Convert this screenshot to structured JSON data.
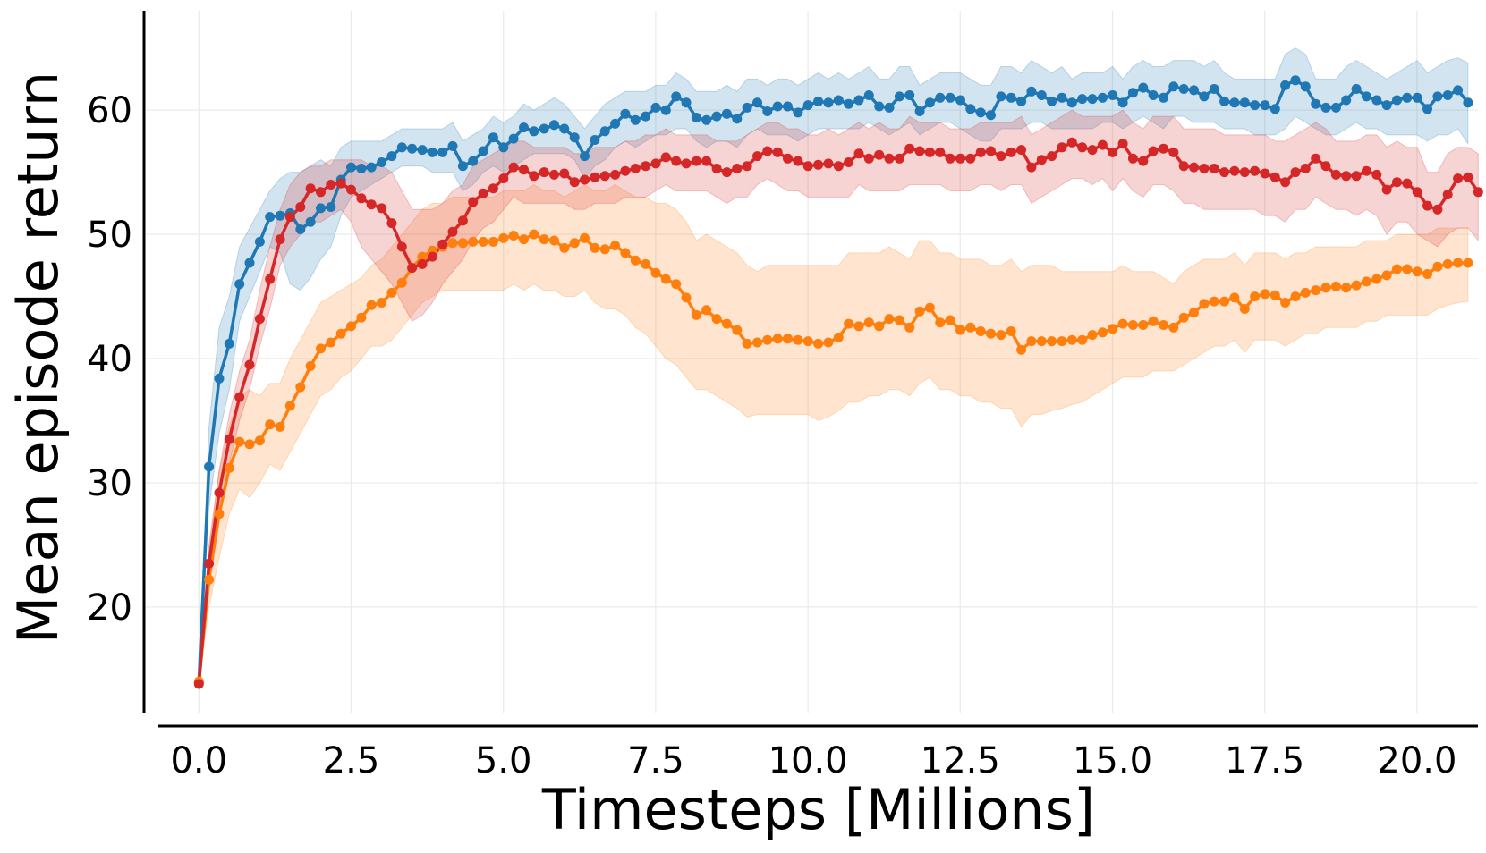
{
  "chart_data": {
    "type": "line",
    "title": "",
    "xlabel": "Timesteps [Millions]",
    "ylabel": "Mean episode return",
    "xlim": [
      -0.9,
      21.0
    ],
    "ylim": [
      11.5,
      68.0
    ],
    "xticks": [
      0.0,
      2.5,
      5.0,
      7.5,
      10.0,
      12.5,
      15.0,
      17.5,
      20.0
    ],
    "xtick_labels": [
      "0.0",
      "2.5",
      "5.0",
      "7.5",
      "10.0",
      "12.5",
      "15.0",
      "17.5",
      "20.0"
    ],
    "yticks": [
      20,
      30,
      40,
      50,
      60
    ],
    "ytick_labels": [
      "20",
      "30",
      "40",
      "50",
      "60"
    ],
    "grid": true,
    "legend": "none",
    "x_interval": 0.1667,
    "series": [
      {
        "color": "#1f77b4",
        "values": [
          13.9,
          31.3,
          38.4,
          41.2,
          46.0,
          47.7,
          49.4,
          51.4,
          51.5,
          51.7,
          50.4,
          51.0,
          52.1,
          52.2,
          54.4,
          55.4,
          55.3,
          55.4,
          55.8,
          56.3,
          57.0,
          56.9,
          56.8,
          56.6,
          56.6,
          57.1,
          55.5,
          55.9,
          56.7,
          57.8,
          57.0,
          57.7,
          58.6,
          58.3,
          58.5,
          58.8,
          58.5,
          57.8,
          56.3,
          57.6,
          58.3,
          58.9,
          59.7,
          59.2,
          59.5,
          60.2,
          60.0,
          61.1,
          60.6,
          59.4,
          59.2,
          59.5,
          59.7,
          59.3,
          60.2,
          60.6,
          59.9,
          60.3,
          60.3,
          59.8,
          60.4,
          60.7,
          60.6,
          60.8,
          60.5,
          60.8,
          61.2,
          60.3,
          60.2,
          61.1,
          61.2,
          59.9,
          60.6,
          61.0,
          61.0,
          60.8,
          60.1,
          59.8,
          59.6,
          61.1,
          61.0,
          60.7,
          61.5,
          61.2,
          60.7,
          61.0,
          60.6,
          60.9,
          60.9,
          61.0,
          61.2,
          60.6,
          61.4,
          61.8,
          61.2,
          61.0,
          61.9,
          61.7,
          61.6,
          61.1,
          61.7,
          60.7,
          60.6,
          60.6,
          60.4,
          60.4,
          60.1,
          62.0,
          62.4,
          61.9,
          60.5,
          60.2,
          60.2,
          60.8,
          61.7,
          61.1,
          60.8,
          60.4,
          60.8,
          61.0,
          61.0,
          60.1,
          61.1,
          61.2,
          61.6,
          60.6
        ],
        "lower": [
          13.9,
          28.0,
          34.0,
          37.5,
          43.0,
          45.0,
          47.0,
          49.0,
          48.5,
          46.0,
          45.5,
          46.5,
          48.0,
          49.0,
          51.5,
          53.0,
          53.5,
          54.0,
          54.5,
          55.0,
          55.5,
          55.5,
          55.5,
          55.0,
          55.0,
          55.0,
          53.5,
          54.0,
          55.0,
          55.5,
          55.0,
          55.5,
          56.0,
          56.5,
          56.5,
          56.5,
          56.5,
          56.0,
          54.5,
          55.5,
          56.0,
          57.0,
          57.5,
          57.0,
          57.5,
          58.0,
          58.0,
          58.5,
          58.5,
          57.5,
          57.0,
          57.5,
          57.5,
          57.0,
          58.0,
          58.5,
          58.0,
          58.0,
          58.0,
          57.5,
          58.0,
          58.5,
          58.5,
          58.5,
          58.5,
          58.5,
          59.0,
          58.5,
          58.0,
          58.5,
          59.0,
          58.0,
          58.5,
          59.0,
          59.0,
          58.5,
          58.0,
          57.5,
          57.5,
          58.5,
          58.5,
          58.5,
          59.0,
          59.0,
          58.5,
          58.5,
          58.5,
          58.5,
          58.5,
          59.0,
          59.0,
          58.5,
          59.0,
          59.5,
          59.0,
          58.5,
          59.5,
          59.5,
          59.0,
          59.0,
          59.0,
          58.5,
          58.5,
          58.5,
          58.0,
          58.0,
          58.0,
          58.5,
          59.5,
          59.0,
          58.5,
          58.0,
          58.0,
          58.5,
          59.0,
          58.5,
          58.5,
          58.0,
          58.0,
          58.0,
          58.0,
          57.5,
          58.0,
          58.0,
          58.5,
          57.3
        ],
        "upper": [
          13.9,
          34.5,
          42.5,
          45.0,
          49.0,
          50.5,
          52.0,
          53.5,
          54.5,
          55.0,
          55.0,
          55.5,
          56.0,
          55.5,
          57.0,
          57.5,
          57.5,
          57.5,
          57.5,
          58.0,
          58.5,
          58.5,
          58.5,
          58.5,
          58.5,
          59.0,
          57.5,
          58.0,
          58.5,
          59.5,
          59.0,
          59.5,
          60.5,
          60.0,
          60.5,
          61.0,
          60.5,
          59.5,
          58.5,
          59.5,
          60.5,
          61.0,
          61.5,
          61.5,
          61.5,
          62.0,
          62.0,
          63.0,
          62.5,
          61.5,
          61.5,
          61.5,
          62.0,
          61.5,
          62.5,
          62.5,
          62.0,
          62.5,
          62.5,
          62.0,
          62.5,
          63.0,
          62.5,
          63.0,
          62.5,
          63.0,
          63.5,
          62.5,
          62.5,
          63.5,
          63.5,
          62.0,
          62.5,
          63.0,
          63.0,
          63.0,
          62.5,
          62.0,
          62.0,
          63.5,
          63.5,
          63.0,
          64.0,
          63.5,
          63.0,
          63.5,
          62.5,
          63.0,
          63.0,
          63.0,
          63.5,
          62.5,
          63.5,
          64.0,
          63.5,
          63.5,
          64.0,
          64.0,
          64.0,
          63.5,
          64.0,
          63.0,
          62.5,
          62.5,
          62.5,
          62.5,
          62.5,
          64.5,
          65.0,
          64.5,
          62.5,
          62.5,
          62.5,
          63.5,
          64.0,
          63.5,
          63.0,
          62.5,
          63.0,
          63.5,
          64.0,
          63.0,
          63.5,
          64.0,
          64.2,
          63.8
        ]
      },
      {
        "color": "#ff7f0e",
        "values": [
          14.0,
          22.2,
          27.5,
          31.2,
          33.3,
          33.1,
          33.4,
          34.7,
          34.5,
          36.2,
          37.7,
          39.4,
          40.8,
          41.3,
          42.0,
          42.6,
          43.3,
          44.3,
          44.5,
          45.3,
          46.1,
          47.3,
          48.2,
          48.7,
          49.0,
          49.3,
          49.3,
          49.4,
          49.4,
          49.4,
          49.7,
          49.9,
          49.6,
          50.0,
          49.6,
          49.5,
          48.9,
          49.3,
          49.7,
          48.9,
          48.8,
          49.1,
          48.5,
          47.9,
          47.6,
          46.9,
          46.4,
          46.0,
          44.9,
          43.5,
          43.9,
          43.2,
          42.8,
          42.3,
          41.2,
          41.3,
          41.5,
          41.6,
          41.6,
          41.5,
          41.4,
          41.2,
          41.3,
          41.7,
          42.8,
          42.6,
          42.9,
          42.6,
          43.2,
          43.1,
          42.5,
          43.8,
          44.1,
          42.9,
          43.1,
          42.3,
          42.5,
          42.2,
          42.0,
          41.9,
          42.2,
          40.7,
          41.4,
          41.4,
          41.4,
          41.4,
          41.5,
          41.5,
          41.9,
          42.1,
          42.4,
          42.8,
          42.7,
          42.7,
          43.0,
          42.7,
          42.5,
          43.3,
          43.7,
          44.4,
          44.6,
          44.6,
          44.9,
          44.0,
          45.0,
          45.2,
          45.1,
          44.5,
          45.0,
          45.3,
          45.5,
          45.7,
          45.8,
          45.7,
          45.9,
          46.2,
          46.4,
          46.7,
          47.2,
          47.2,
          47.0,
          46.8,
          47.4,
          47.6,
          47.7,
          47.7
        ],
        "lower": [
          14.0,
          20.0,
          24.0,
          27.5,
          29.5,
          28.8,
          30.0,
          31.5,
          31.0,
          32.5,
          34.0,
          35.5,
          37.0,
          37.5,
          38.5,
          39.0,
          40.0,
          41.0,
          41.0,
          41.5,
          42.5,
          43.5,
          44.5,
          45.0,
          45.5,
          45.5,
          45.5,
          45.5,
          45.5,
          45.5,
          45.5,
          46.0,
          45.5,
          46.0,
          45.5,
          45.5,
          45.0,
          45.0,
          45.5,
          44.5,
          44.0,
          44.0,
          43.5,
          42.5,
          42.0,
          41.0,
          40.0,
          39.5,
          38.5,
          37.5,
          37.5,
          37.0,
          36.5,
          36.0,
          35.3,
          35.5,
          35.5,
          35.5,
          35.5,
          35.5,
          35.5,
          35.0,
          35.3,
          35.8,
          36.5,
          36.5,
          37.0,
          37.0,
          37.5,
          37.5,
          37.0,
          38.0,
          38.5,
          37.5,
          37.5,
          37.0,
          37.0,
          36.5,
          36.5,
          36.0,
          36.0,
          34.5,
          35.5,
          35.5,
          35.8,
          36.0,
          36.3,
          36.5,
          37.0,
          37.5,
          38.0,
          38.5,
          38.5,
          38.5,
          39.0,
          39.0,
          39.0,
          39.5,
          40.0,
          40.5,
          41.0,
          41.0,
          41.5,
          40.5,
          41.5,
          41.5,
          41.5,
          41.0,
          41.5,
          42.0,
          42.0,
          42.5,
          42.5,
          42.5,
          42.5,
          43.0,
          43.0,
          43.5,
          43.5,
          43.5,
          43.5,
          43.5,
          44.0,
          44.3,
          44.5,
          44.6
        ],
        "upper": [
          14.0,
          24.5,
          31.0,
          34.5,
          37.0,
          37.5,
          37.0,
          38.0,
          38.0,
          40.0,
          41.5,
          43.0,
          44.5,
          45.0,
          45.5,
          46.0,
          46.5,
          47.5,
          48.0,
          49.0,
          50.0,
          51.0,
          52.0,
          52.5,
          52.5,
          53.0,
          53.0,
          53.0,
          53.0,
          53.0,
          53.5,
          53.5,
          53.5,
          54.0,
          53.5,
          53.5,
          53.0,
          53.5,
          54.0,
          53.5,
          53.5,
          54.0,
          53.5,
          53.0,
          53.0,
          52.5,
          52.5,
          52.0,
          51.0,
          49.5,
          50.0,
          49.5,
          49.0,
          48.5,
          47.5,
          47.0,
          47.5,
          47.5,
          47.5,
          47.5,
          47.5,
          47.5,
          47.5,
          47.5,
          48.5,
          48.5,
          48.5,
          48.5,
          49.0,
          48.5,
          48.0,
          49.5,
          49.5,
          48.5,
          48.5,
          48.0,
          48.0,
          48.0,
          47.5,
          47.5,
          48.0,
          47.0,
          47.5,
          47.5,
          47.5,
          47.0,
          47.0,
          47.0,
          47.0,
          47.0,
          47.0,
          47.5,
          47.0,
          47.0,
          47.0,
          46.5,
          46.0,
          47.0,
          47.5,
          48.0,
          48.0,
          48.0,
          48.5,
          47.5,
          48.5,
          48.5,
          48.5,
          48.0,
          48.5,
          48.5,
          49.0,
          49.0,
          49.0,
          49.0,
          49.0,
          49.5,
          49.5,
          49.5,
          50.0,
          50.0,
          50.0,
          50.0,
          50.5,
          50.5,
          50.5,
          50.5
        ]
      },
      {
        "color": "#d62728",
        "values": [
          13.8,
          23.5,
          29.2,
          33.5,
          36.9,
          39.5,
          43.2,
          46.4,
          49.6,
          51.4,
          52.2,
          53.7,
          53.4,
          54.0,
          54.1,
          53.6,
          52.9,
          52.4,
          52.1,
          50.9,
          49.0,
          47.3,
          47.6,
          48.2,
          49.2,
          50.2,
          51.1,
          52.6,
          53.3,
          53.7,
          54.5,
          55.4,
          55.2,
          54.7,
          55.0,
          54.8,
          54.9,
          54.2,
          54.4,
          54.6,
          54.7,
          54.8,
          55.1,
          55.3,
          55.5,
          55.7,
          56.2,
          55.9,
          55.7,
          55.9,
          55.9,
          55.3,
          55.0,
          55.3,
          55.5,
          56.3,
          56.7,
          56.6,
          56.1,
          55.9,
          55.5,
          55.6,
          55.7,
          55.5,
          55.8,
          56.5,
          56.1,
          56.4,
          56.1,
          56.1,
          56.9,
          56.7,
          56.6,
          56.6,
          56.1,
          56.1,
          56.1,
          56.6,
          56.7,
          56.3,
          56.6,
          56.8,
          55.4,
          56.0,
          56.3,
          57.0,
          57.4,
          57.0,
          56.8,
          57.2,
          56.6,
          57.3,
          56.1,
          55.9,
          56.7,
          56.9,
          56.6,
          55.5,
          55.4,
          55.3,
          55.3,
          55.0,
          55.1,
          55.0,
          55.1,
          54.9,
          54.6,
          54.2,
          55.0,
          55.3,
          56.1,
          55.5,
          54.8,
          54.7,
          54.7,
          55.1,
          54.8,
          53.6,
          54.2,
          54.1,
          53.4,
          52.3,
          52.0,
          53.2,
          54.5,
          54.6,
          53.4
        ],
        "lower": [
          13.8,
          22.0,
          27.5,
          31.5,
          35.0,
          37.5,
          41.0,
          44.0,
          47.5,
          49.0,
          50.0,
          51.0,
          51.0,
          51.5,
          52.0,
          51.0,
          49.0,
          48.0,
          47.0,
          46.0,
          44.5,
          43.0,
          43.5,
          44.5,
          46.0,
          47.0,
          48.0,
          49.5,
          50.5,
          51.0,
          52.0,
          53.0,
          52.5,
          52.5,
          52.5,
          52.5,
          52.5,
          52.0,
          52.0,
          52.5,
          52.5,
          52.5,
          53.0,
          53.0,
          53.0,
          53.5,
          54.0,
          53.5,
          53.5,
          53.5,
          53.5,
          53.0,
          52.5,
          53.0,
          53.0,
          54.0,
          54.5,
          54.0,
          53.5,
          53.5,
          53.0,
          53.0,
          53.0,
          53.0,
          53.0,
          54.0,
          53.5,
          53.5,
          53.5,
          53.5,
          54.0,
          54.0,
          54.0,
          54.0,
          53.5,
          53.5,
          53.5,
          54.0,
          54.0,
          53.5,
          54.0,
          54.0,
          52.5,
          53.0,
          53.5,
          54.0,
          54.5,
          54.5,
          54.0,
          54.5,
          53.5,
          54.5,
          53.5,
          53.0,
          54.0,
          54.0,
          53.5,
          52.5,
          52.5,
          52.0,
          52.0,
          52.0,
          52.0,
          52.0,
          52.0,
          51.5,
          51.5,
          51.0,
          52.0,
          52.0,
          53.0,
          52.5,
          52.0,
          52.0,
          51.5,
          52.0,
          51.5,
          50.0,
          51.0,
          51.0,
          50.0,
          49.5,
          49.0,
          50.0,
          50.5,
          50.5,
          49.5
        ],
        "upper": [
          13.8,
          25.0,
          31.0,
          35.5,
          39.0,
          41.5,
          45.5,
          49.0,
          52.0,
          54.0,
          55.0,
          55.5,
          55.5,
          56.0,
          56.0,
          56.0,
          56.0,
          55.5,
          55.5,
          55.0,
          53.5,
          52.0,
          52.0,
          52.0,
          52.5,
          53.5,
          54.0,
          55.5,
          56.0,
          56.5,
          57.0,
          57.5,
          57.5,
          57.0,
          57.0,
          57.0,
          57.0,
          56.5,
          56.5,
          57.0,
          57.0,
          57.0,
          57.5,
          57.5,
          58.0,
          58.0,
          58.5,
          58.0,
          58.0,
          58.0,
          58.0,
          57.5,
          57.5,
          57.5,
          58.0,
          58.5,
          59.0,
          59.0,
          58.5,
          58.5,
          58.0,
          58.0,
          58.5,
          58.0,
          58.5,
          59.0,
          58.5,
          59.0,
          58.5,
          58.5,
          59.5,
          59.0,
          59.0,
          59.0,
          58.5,
          58.5,
          58.5,
          59.0,
          59.0,
          59.0,
          59.0,
          59.5,
          58.0,
          58.5,
          59.0,
          59.5,
          60.0,
          59.5,
          59.5,
          59.5,
          59.5,
          60.0,
          59.0,
          58.5,
          59.5,
          59.5,
          59.5,
          58.5,
          58.5,
          58.5,
          58.5,
          58.0,
          58.0,
          58.0,
          58.0,
          58.0,
          57.5,
          57.5,
          58.0,
          58.5,
          59.0,
          58.5,
          57.5,
          57.5,
          57.5,
          58.0,
          58.0,
          57.0,
          57.5,
          57.0,
          57.0,
          55.0,
          55.0,
          56.5,
          57.0,
          57.0,
          56.5
        ]
      }
    ]
  }
}
